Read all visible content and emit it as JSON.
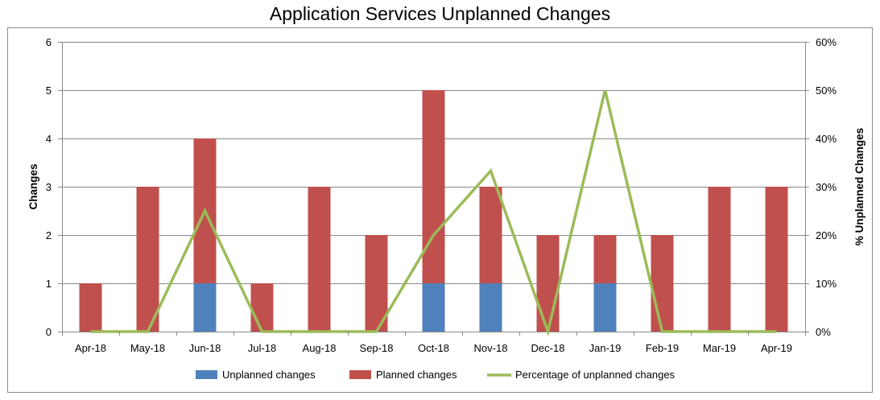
{
  "chart_data": {
    "type": "bar",
    "stacked": true,
    "title": "Application Services Unplanned Changes",
    "categories": [
      "Apr-18",
      "May-18",
      "Jun-18",
      "Jul-18",
      "Aug-18",
      "Sep-18",
      "Oct-18",
      "Nov-18",
      "Dec-18",
      "Jan-19",
      "Feb-19",
      "Mar-19",
      "Apr-19"
    ],
    "series": [
      {
        "name": "Unplanned changes",
        "type": "bar",
        "axis": "left",
        "color": "#4f81bd",
        "values": [
          0,
          0,
          1,
          0,
          0,
          0,
          1,
          1,
          0,
          1,
          0,
          0,
          0
        ]
      },
      {
        "name": "Planned changes",
        "type": "bar",
        "axis": "left",
        "color": "#c0504d",
        "values": [
          1,
          3,
          3,
          1,
          3,
          2,
          4,
          2,
          2,
          1,
          2,
          3,
          3
        ]
      },
      {
        "name": "Percentage of unplanned changes",
        "type": "line",
        "axis": "right",
        "color": "#9bbb59",
        "values": [
          0,
          0,
          25,
          0,
          0,
          0,
          20,
          33.3,
          0,
          50,
          0,
          0,
          0
        ]
      }
    ],
    "ylabel": "Changes",
    "y2label": "% Unplanned Changes",
    "ylim": [
      0,
      6
    ],
    "y2lim": [
      0,
      60
    ],
    "yticks": [
      "0",
      "1",
      "2",
      "3",
      "4",
      "5",
      "6"
    ],
    "y2ticks": [
      "0%",
      "10%",
      "20%",
      "30%",
      "40%",
      "50%",
      "60%"
    ],
    "grid": true,
    "legend_position": "bottom"
  }
}
